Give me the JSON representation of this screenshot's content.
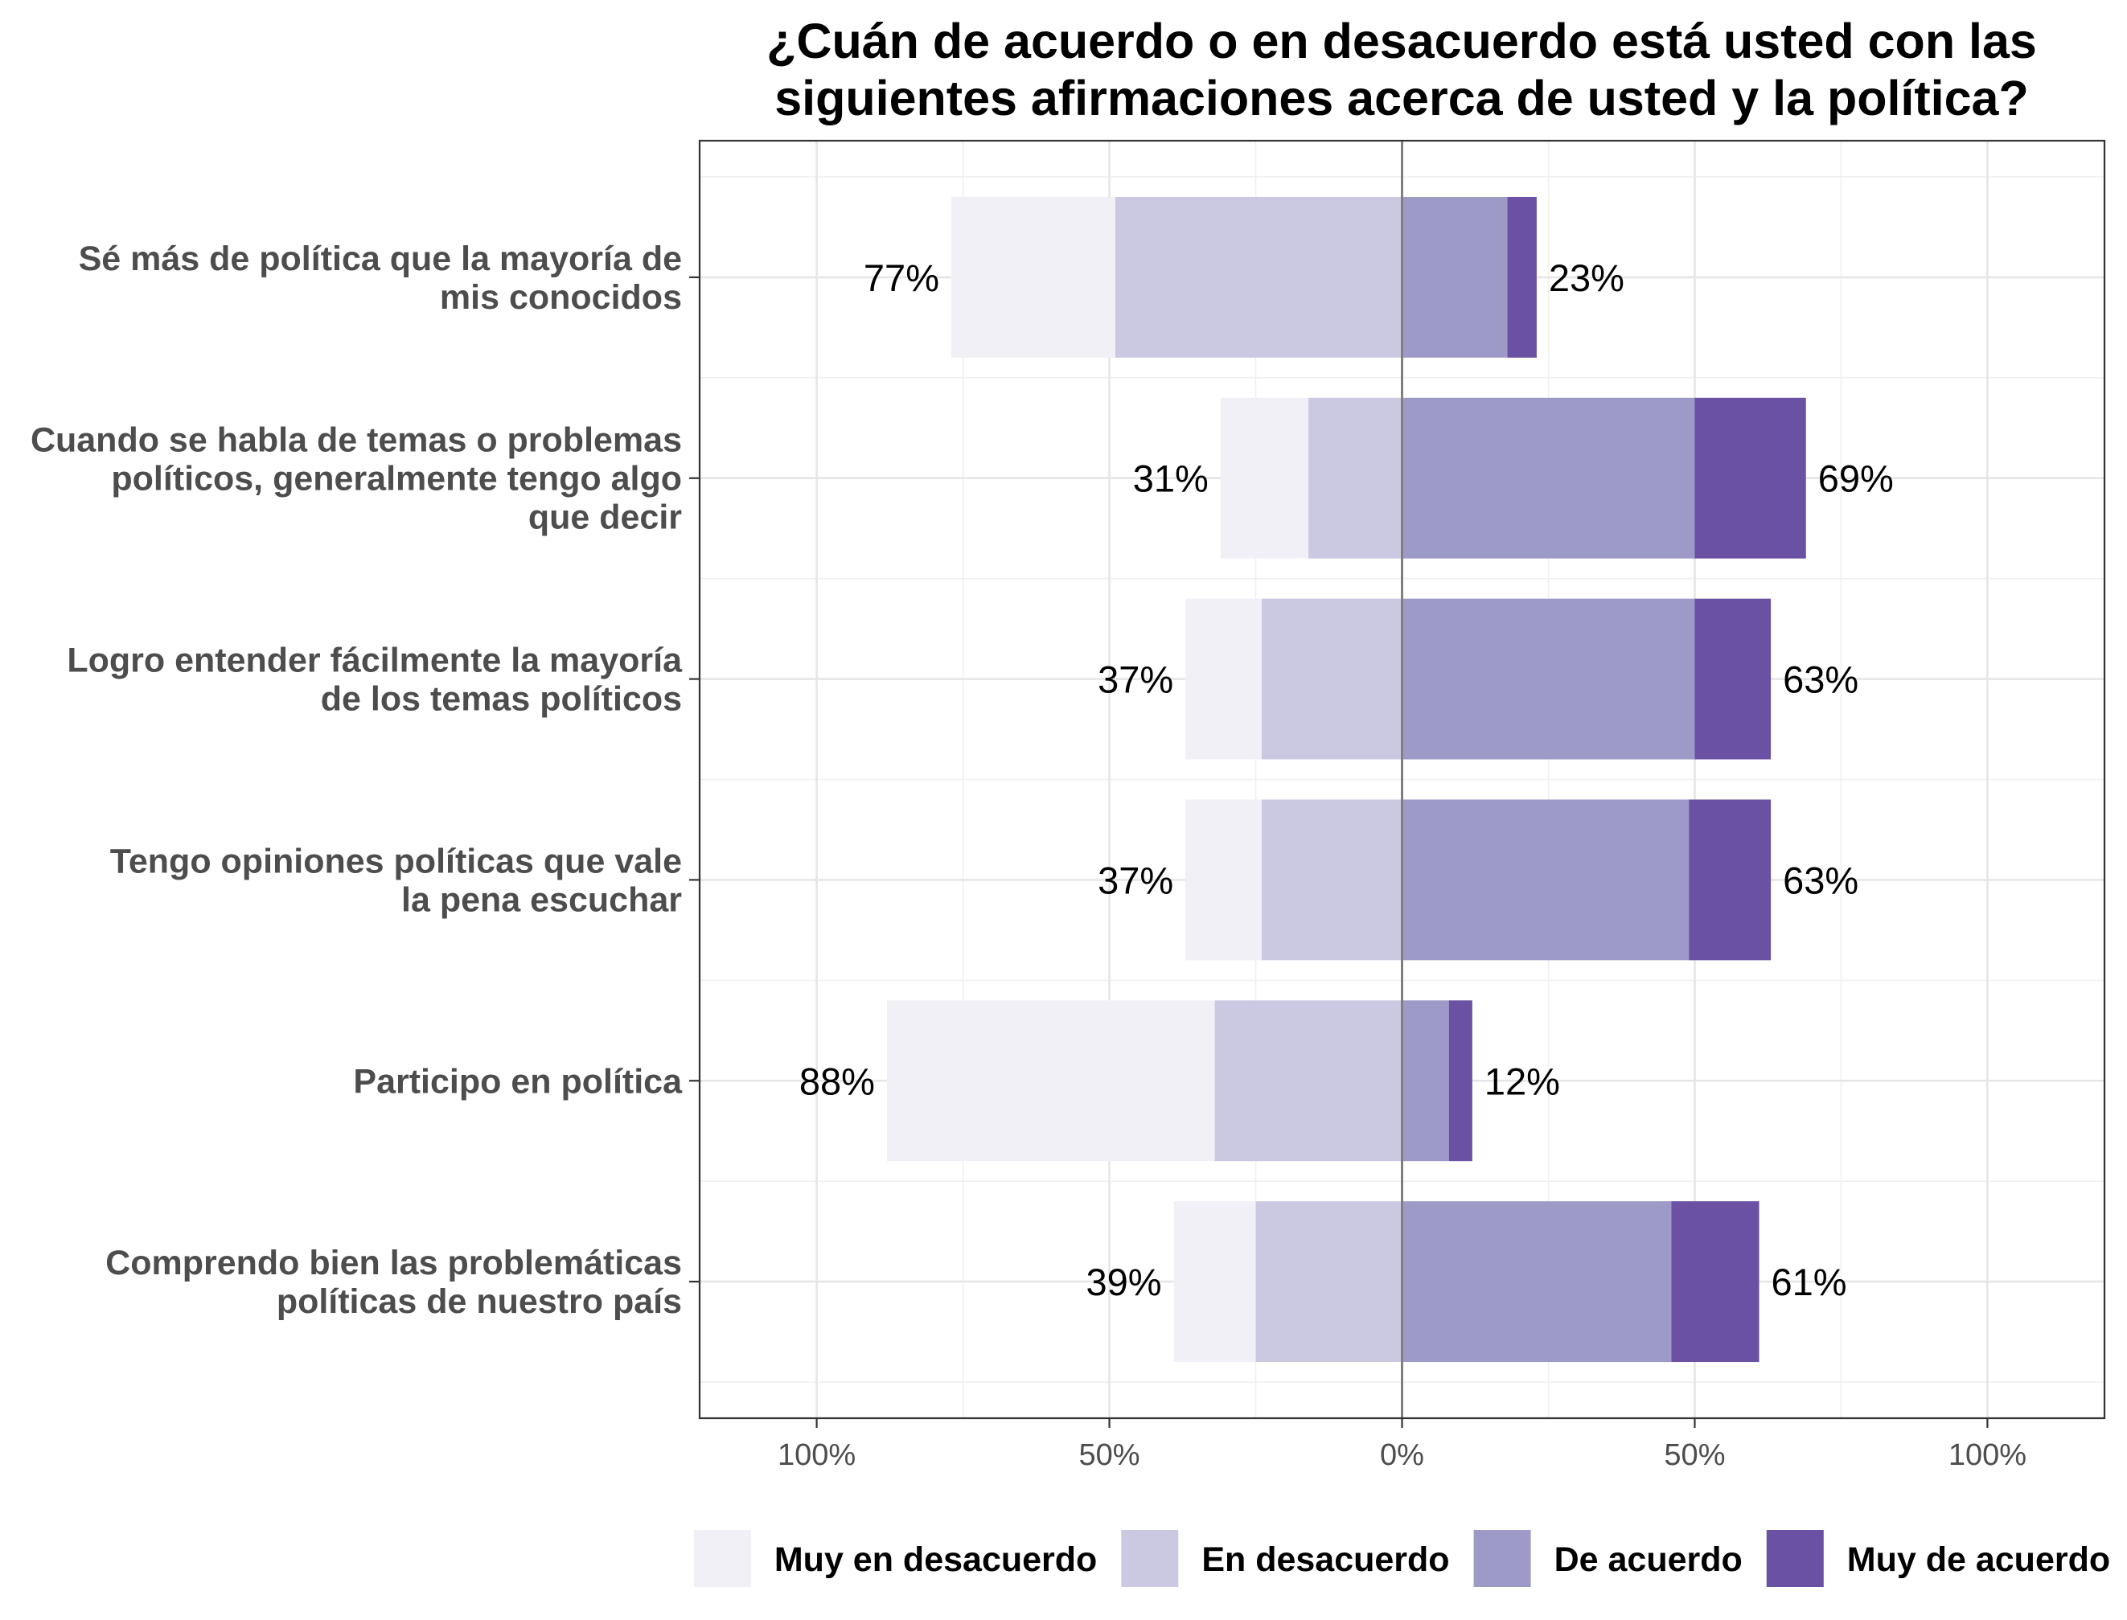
{
  "chart_data": {
    "type": "bar",
    "orientation": "horizontal",
    "stacked": true,
    "title": "¿Cuán de acuerdo o en desacuerdo está usted con las siguientes afirmaciones acerca de usted y la política?",
    "categories": [
      [
        "Sé más de política que la mayoría de",
        "mis conocidos"
      ],
      [
        "Cuando se habla de temas o problemas",
        "políticos, generalmente tengo algo",
        "que decir"
      ],
      [
        "Logro entender fácilmente la mayoría",
        "de los temas políticos"
      ],
      [
        "Tengo opiniones políticas que vale",
        "la pena escuchar"
      ],
      [
        "Participo en política"
      ],
      [
        "Comprendo bien las problemáticas",
        "políticas de nuestro país"
      ]
    ],
    "series": [
      {
        "name": "Muy en desacuerdo",
        "color": "#f2f0f7",
        "direction": -1,
        "values": [
          28,
          15,
          13,
          13,
          56,
          14
        ]
      },
      {
        "name": "En desacuerdo",
        "color": "#cbc9e2",
        "direction": -1,
        "values": [
          49,
          16,
          24,
          24,
          32,
          25
        ]
      },
      {
        "name": "De acuerdo",
        "color": "#9e9ac8",
        "direction": 1,
        "values": [
          18,
          50,
          50,
          49,
          8,
          46
        ]
      },
      {
        "name": "Muy de acuerdo",
        "color": "#6a51a3",
        "direction": 1,
        "values": [
          5,
          19,
          13,
          14,
          4,
          15
        ]
      }
    ],
    "data_labels": {
      "left": [
        "77%",
        "31%",
        "37%",
        "37%",
        "88%",
        "39%"
      ],
      "right": [
        "23%",
        "69%",
        "63%",
        "63%",
        "12%",
        "61%"
      ]
    },
    "xlim": [
      -120,
      120
    ],
    "xticks": [
      -100,
      -50,
      0,
      50,
      100
    ],
    "xtick_labels": [
      "100%",
      "50%",
      "0%",
      "50%",
      "100%"
    ],
    "reference_line_x": 0,
    "grid": true,
    "legend_position": "bottom"
  }
}
